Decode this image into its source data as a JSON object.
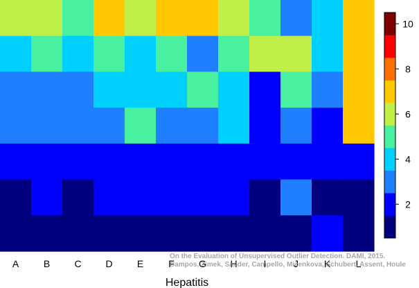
{
  "chart_data": {
    "type": "heatmap",
    "xlabel": "Hepatitis",
    "categories": [
      "A",
      "B",
      "C",
      "D",
      "E",
      "F",
      "G",
      "H",
      "I",
      "J",
      "K",
      "L"
    ],
    "row_order": "top-to-bottom",
    "values": [
      [
        6,
        6,
        5,
        7,
        6,
        7,
        7,
        6,
        5,
        3,
        4,
        7
      ],
      [
        4,
        5,
        4,
        5,
        4,
        5,
        3,
        5,
        6,
        6,
        4,
        7
      ],
      [
        3,
        3,
        3,
        4,
        4,
        4,
        5,
        4,
        2,
        5,
        3,
        7
      ],
      [
        3,
        3,
        3,
        3,
        5,
        3,
        3,
        4,
        2,
        3,
        2,
        7
      ],
      [
        2,
        2,
        2,
        2,
        2,
        2,
        2,
        2,
        2,
        2,
        2,
        2
      ],
      [
        1,
        2,
        1,
        2,
        2,
        2,
        2,
        2,
        1,
        3,
        1,
        1
      ],
      [
        1,
        1,
        1,
        1,
        1,
        1,
        1,
        1,
        1,
        1,
        2,
        1
      ]
    ],
    "colorbar": {
      "ticks": [
        2,
        4,
        6,
        8,
        10
      ],
      "levels": [
        1,
        2,
        3,
        4,
        5,
        6,
        7,
        8,
        9,
        10
      ],
      "colors": [
        "#00007f",
        "#0000ff",
        "#1e7fff",
        "#00d0ff",
        "#48f0a0",
        "#c0f048",
        "#ffc800",
        "#ff7000",
        "#ff0000",
        "#7f0000"
      ]
    }
  },
  "watermark": {
    "line1": "On the Evaluation of Unsupervised Outlier Detection. DAMI, 2015.",
    "line2": "Campos, Zimek, Sander, Campello, Micenkova, Schubert, Assent, Houle"
  }
}
